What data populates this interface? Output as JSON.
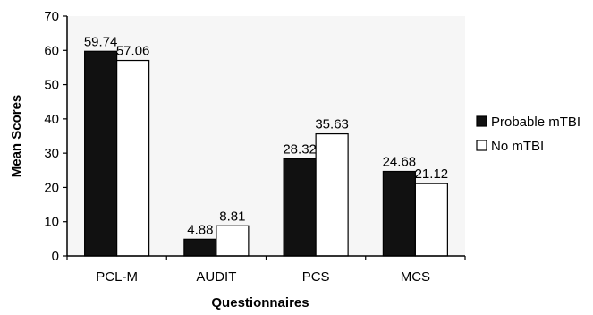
{
  "chart_data": {
    "type": "bar",
    "title": "",
    "xlabel": "Questionnaires",
    "ylabel": "Mean Scores",
    "categories": [
      "PCL-M",
      "AUDIT",
      "PCS",
      "MCS"
    ],
    "series": [
      {
        "name": "Probable mTBI",
        "color": "#111111",
        "values": [
          59.74,
          4.88,
          28.32,
          24.68
        ],
        "labels": [
          "59.74",
          "4.88",
          "28.32",
          "24.68"
        ]
      },
      {
        "name": "No mTBI",
        "color": "#ffffff",
        "values": [
          57.06,
          8.81,
          35.63,
          21.12
        ],
        "labels": [
          "57.06",
          "8.81",
          "35.63",
          "21.12"
        ]
      }
    ],
    "ylim": [
      0,
      70
    ],
    "yticks": [
      "0",
      "10",
      "20",
      "30",
      "40",
      "50",
      "60",
      "70"
    ],
    "grid": false,
    "legend_position": "right"
  }
}
